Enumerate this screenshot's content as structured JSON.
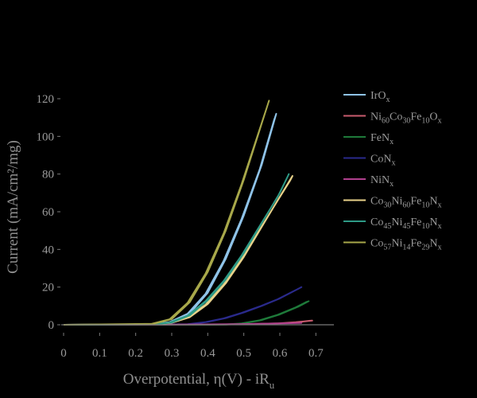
{
  "chart_data": {
    "type": "line",
    "title": "",
    "xlabel": "Overpotential, η(V) - iR",
    "xlabel_sub": "u",
    "ylabel": "Current (mA/cm²/mg)",
    "xlim": [
      0,
      0.75
    ],
    "ylim": [
      -2,
      125
    ],
    "xticks": [
      0,
      0.1,
      0.2,
      0.3,
      0.4,
      0.5,
      0.6,
      0.7
    ],
    "xtick_labels": [
      "0",
      "0.1",
      "0.2",
      "0.3",
      "0.4",
      "0.5",
      "0.6",
      "0.7"
    ],
    "yticks": [
      0,
      20,
      40,
      60,
      80,
      100,
      120
    ],
    "ytick_labels": [
      "0",
      "20",
      "40",
      "60",
      "80",
      "100",
      "120"
    ],
    "grid": false,
    "legend_position": "right",
    "series": [
      {
        "name": "IrOx",
        "color": "#8fc3e8",
        "x": [
          0,
          0.25,
          0.3,
          0.35,
          0.4,
          0.45,
          0.5,
          0.55,
          0.59
        ],
        "y": [
          0,
          0.3,
          1.5,
          6,
          17,
          35,
          58,
          85,
          112
        ]
      },
      {
        "name": "Ni60Co30Fe10Ox",
        "color": "#c85b6e",
        "x": [
          0,
          0.4,
          0.5,
          0.6,
          0.65,
          0.69
        ],
        "y": [
          0,
          0,
          0.3,
          0.8,
          1.4,
          2.2
        ]
      },
      {
        "name": "FeNx",
        "color": "#1e7a3a",
        "x": [
          0,
          0.45,
          0.5,
          0.55,
          0.6,
          0.65,
          0.68
        ],
        "y": [
          0,
          0.1,
          0.8,
          2.5,
          5.5,
          9.5,
          12.5
        ]
      },
      {
        "name": "CoNx",
        "color": "#2a2a8c",
        "x": [
          0,
          0.35,
          0.4,
          0.45,
          0.5,
          0.55,
          0.6,
          0.66
        ],
        "y": [
          0,
          0.3,
          1.5,
          3.5,
          6.5,
          10,
          14,
          20
        ]
      },
      {
        "name": "NiNx",
        "color": "#b0408e",
        "x": [
          0,
          0.3,
          0.4,
          0.5,
          0.6,
          0.66
        ],
        "y": [
          0,
          0.1,
          0.2,
          0.4,
          0.7,
          1.0
        ]
      },
      {
        "name": "Co30Ni60Fe10Nx",
        "color": "#e8d28a",
        "x": [
          0,
          0.25,
          0.3,
          0.35,
          0.4,
          0.45,
          0.5,
          0.55,
          0.6,
          0.635
        ],
        "y": [
          0,
          0.2,
          1,
          4,
          11,
          22,
          36,
          52,
          68,
          79
        ]
      },
      {
        "name": "Co45Ni45Fe10Nx",
        "color": "#2e9a86",
        "x": [
          0,
          0.25,
          0.3,
          0.35,
          0.4,
          0.45,
          0.5,
          0.55,
          0.6,
          0.625
        ],
        "y": [
          0,
          0.2,
          1.2,
          5,
          13,
          24,
          38,
          54,
          70,
          80
        ]
      },
      {
        "name": "Co57Ni14Fe29Nx",
        "color": "#a8a84a",
        "x": [
          0,
          0.25,
          0.3,
          0.35,
          0.4,
          0.45,
          0.5,
          0.55,
          0.57
        ],
        "y": [
          0,
          0.5,
          3,
          12,
          28,
          50,
          77,
          107,
          119
        ]
      }
    ]
  },
  "legend_entries": [
    {
      "parts": [
        [
          "t",
          "IrO"
        ],
        [
          "sub",
          "x"
        ]
      ]
    },
    {
      "parts": [
        [
          "t",
          "Ni"
        ],
        [
          "sub",
          "60"
        ],
        [
          "t",
          "Co"
        ],
        [
          "sub",
          "30"
        ],
        [
          "t",
          "Fe"
        ],
        [
          "sub",
          "10"
        ],
        [
          "t",
          "O"
        ],
        [
          "sub",
          "x"
        ]
      ]
    },
    {
      "parts": [
        [
          "t",
          "FeN"
        ],
        [
          "sub",
          "x"
        ]
      ]
    },
    {
      "parts": [
        [
          "t",
          "CoN"
        ],
        [
          "sub",
          "x"
        ]
      ]
    },
    {
      "parts": [
        [
          "t",
          "NiN"
        ],
        [
          "sub",
          "x"
        ]
      ]
    },
    {
      "parts": [
        [
          "t",
          "Co"
        ],
        [
          "sub",
          "30"
        ],
        [
          "t",
          "Ni"
        ],
        [
          "sub",
          "60"
        ],
        [
          "t",
          "Fe"
        ],
        [
          "sub",
          "10"
        ],
        [
          "t",
          "N"
        ],
        [
          "sub",
          "x"
        ]
      ]
    },
    {
      "parts": [
        [
          "t",
          "Co"
        ],
        [
          "sub",
          "45"
        ],
        [
          "t",
          "Ni"
        ],
        [
          "sub",
          "45"
        ],
        [
          "t",
          "Fe"
        ],
        [
          "sub",
          "10"
        ],
        [
          "t",
          "N"
        ],
        [
          "sub",
          "x"
        ]
      ]
    },
    {
      "parts": [
        [
          "t",
          "Co"
        ],
        [
          "sub",
          "57"
        ],
        [
          "t",
          "Ni"
        ],
        [
          "sub",
          "14"
        ],
        [
          "t",
          "Fe"
        ],
        [
          "sub",
          "29"
        ],
        [
          "t",
          "N"
        ],
        [
          "sub",
          "x"
        ]
      ]
    }
  ]
}
